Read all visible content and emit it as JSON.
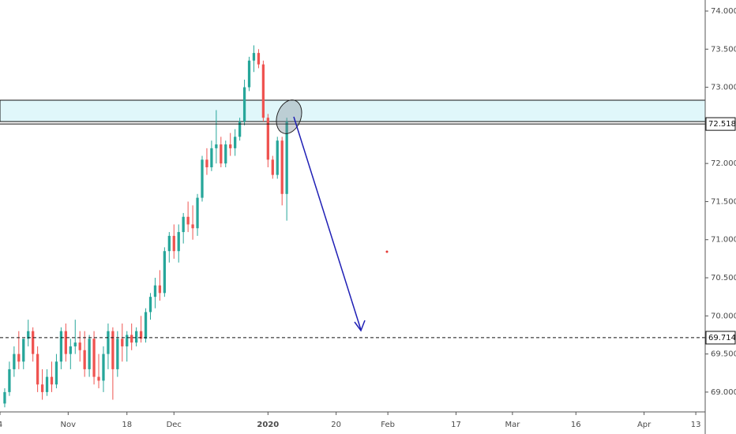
{
  "chart_data": {
    "type": "candlestick",
    "up_color": "#26a69a",
    "down_color": "#ef5350",
    "xlim": [
      0,
      150
    ],
    "xticks": [
      {
        "value": 0,
        "label": "4"
      },
      {
        "value": 14.5,
        "label": "Nov"
      },
      {
        "value": 27,
        "label": "18"
      },
      {
        "value": 37,
        "label": "Dec"
      },
      {
        "value": 57,
        "label": "2020"
      },
      {
        "value": 71.5,
        "label": "20"
      },
      {
        "value": 82.5,
        "label": "Feb"
      },
      {
        "value": 97,
        "label": "17"
      },
      {
        "value": 109,
        "label": "Mar"
      },
      {
        "value": 122.5,
        "label": "16"
      },
      {
        "value": 137,
        "label": "Apr"
      },
      {
        "value": 148,
        "label": "13"
      }
    ],
    "ylim": [
      68.74,
      74.145
    ],
    "yticks": [
      {
        "value": 69,
        "label": "69.000"
      },
      {
        "value": 69.5,
        "label": "69.500"
      },
      {
        "value": 70,
        "label": "70.000"
      },
      {
        "value": 70.5,
        "label": "70.500"
      },
      {
        "value": 71,
        "label": "71.000"
      },
      {
        "value": 71.5,
        "label": "71.500"
      },
      {
        "value": 72,
        "label": "72.000"
      },
      {
        "value": 73,
        "label": "73.000"
      },
      {
        "value": 73.5,
        "label": "73.500"
      },
      {
        "value": 74,
        "label": "74.000"
      }
    ],
    "x": [
      1,
      2,
      3,
      4,
      5,
      6,
      7,
      8,
      9,
      10,
      11,
      12,
      13,
      14,
      15,
      16,
      17,
      18,
      19,
      20,
      21,
      22,
      23,
      24,
      25,
      26,
      27,
      28,
      29,
      30,
      31,
      32,
      33,
      34,
      35,
      36,
      37,
      38,
      39,
      40,
      41,
      42,
      43,
      44,
      45,
      46,
      47,
      48,
      49,
      50,
      51,
      52,
      53,
      54,
      55,
      56,
      57,
      58,
      59,
      60,
      61
    ],
    "open": [
      68.85,
      69.0,
      69.3,
      69.5,
      69.4,
      69.7,
      69.8,
      69.5,
      69.1,
      69.0,
      69.2,
      69.1,
      69.4,
      69.8,
      69.5,
      69.6,
      69.65,
      69.55,
      69.3,
      69.7,
      69.2,
      69.15,
      69.5,
      69.8,
      69.3,
      69.7,
      69.6,
      69.75,
      69.65,
      69.8,
      69.7,
      70.05,
      70.25,
      70.4,
      70.3,
      70.85,
      71.05,
      70.85,
      71.1,
      71.3,
      71.2,
      71.15,
      71.55,
      72.05,
      71.95,
      72.2,
      72.25,
      72.0,
      72.25,
      72.2,
      72.35,
      72.55,
      73.0,
      73.35,
      73.45,
      73.3,
      72.6,
      72.05,
      71.85,
      72.3,
      71.6
    ],
    "high": [
      69.05,
      69.4,
      69.6,
      69.8,
      69.7,
      69.95,
      69.85,
      69.6,
      69.3,
      69.3,
      69.4,
      69.5,
      69.85,
      69.9,
      69.7,
      69.95,
      69.8,
      69.8,
      69.75,
      69.8,
      69.5,
      69.6,
      69.9,
      69.85,
      69.8,
      69.9,
      69.8,
      69.9,
      69.85,
      70.0,
      70.1,
      70.3,
      70.5,
      70.6,
      70.9,
      71.1,
      71.2,
      71.2,
      71.35,
      71.5,
      71.45,
      71.6,
      72.1,
      72.2,
      72.3,
      72.7,
      72.35,
      72.3,
      72.4,
      72.45,
      72.6,
      73.1,
      73.4,
      73.55,
      73.5,
      73.35,
      72.65,
      72.1,
      72.35,
      72.35,
      72.6
    ],
    "low": [
      68.8,
      68.95,
      69.2,
      69.3,
      69.3,
      69.6,
      69.4,
      69.0,
      68.9,
      68.95,
      69.0,
      69.05,
      69.3,
      69.4,
      69.3,
      69.5,
      69.4,
      69.2,
      69.2,
      69.1,
      69.05,
      69.0,
      69.3,
      68.9,
      69.2,
      69.4,
      69.4,
      69.55,
      69.6,
      69.65,
      69.65,
      69.95,
      70.1,
      70.2,
      70.25,
      70.7,
      70.75,
      70.7,
      70.95,
      71.1,
      71.0,
      71.05,
      71.5,
      71.85,
      71.9,
      72.0,
      71.95,
      71.95,
      72.1,
      72.1,
      72.3,
      72.5,
      72.95,
      73.2,
      73.25,
      72.55,
      71.95,
      71.8,
      71.8,
      71.45,
      71.25
    ],
    "close": [
      69.0,
      69.3,
      69.5,
      69.4,
      69.7,
      69.8,
      69.5,
      69.1,
      69.0,
      69.2,
      69.1,
      69.4,
      69.8,
      69.5,
      69.6,
      69.65,
      69.55,
      69.3,
      69.7,
      69.2,
      69.15,
      69.5,
      69.8,
      69.3,
      69.7,
      69.6,
      69.75,
      69.65,
      69.8,
      69.7,
      70.05,
      70.25,
      70.4,
      70.3,
      70.85,
      71.05,
      70.85,
      71.1,
      71.3,
      71.2,
      71.15,
      71.55,
      72.05,
      71.95,
      72.2,
      72.25,
      72.0,
      72.25,
      72.2,
      72.35,
      72.55,
      73.0,
      73.35,
      73.45,
      73.3,
      72.6,
      72.05,
      71.85,
      72.3,
      71.6,
      72.55
    ],
    "zone": [
      72.55,
      72.83
    ],
    "price_lines": [
      {
        "value": 72.518,
        "label": "72.518",
        "style": "solid"
      },
      {
        "value": 69.714,
        "label": "69.714",
        "style": "dashed"
      }
    ]
  }
}
